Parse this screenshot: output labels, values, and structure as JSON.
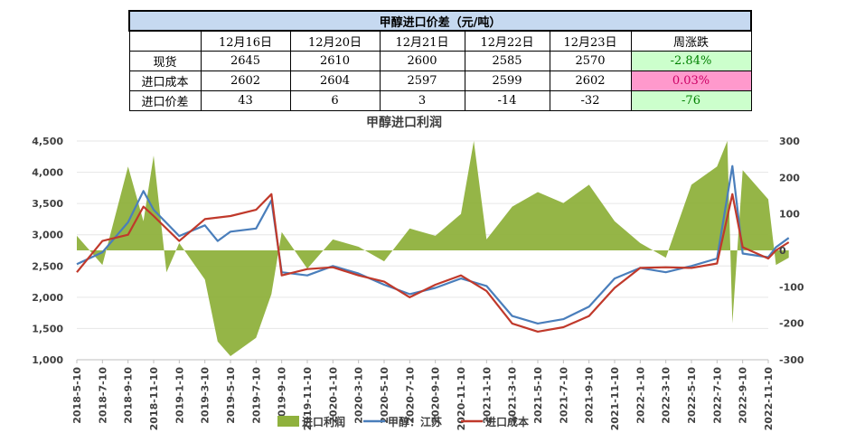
{
  "table": {
    "title": "甲醇进口价差（元/吨）",
    "headers": [
      "",
      "12月16日",
      "12月20日",
      "12月21日",
      "12月22日",
      "12月23日",
      "周涨跌"
    ],
    "rows": [
      {
        "label": "现货",
        "values": [
          "2645",
          "2610",
          "2600",
          "2585",
          "2570"
        ],
        "change": "-2.84%",
        "change_style": "green"
      },
      {
        "label": "进口成本",
        "values": [
          "2602",
          "2604",
          "2597",
          "2599",
          "2602"
        ],
        "change": "0.03%",
        "change_style": "pink"
      },
      {
        "label": "进口价差",
        "values": [
          "43",
          "6",
          "3",
          "-14",
          "-32"
        ],
        "change": "-76",
        "change_style": "green"
      }
    ]
  },
  "chart_data": {
    "type": "line",
    "title": "甲醇进口利润",
    "x_ticks": [
      "2018-5-10",
      "2018-7-10",
      "2018-9-10",
      "2018-11-10",
      "2019-1-10",
      "2019-3-10",
      "2019-5-10",
      "2019-7-10",
      "2019-9-10",
      "2019-11-10",
      "2020-1-10",
      "2020-3-10",
      "2020-5-10",
      "2020-7-10",
      "2020-9-10",
      "2020-11-10",
      "2021-1-10",
      "2021-3-10",
      "2021-5-10",
      "2021-7-10",
      "2021-9-10",
      "2021-11-10",
      "2022-1-10",
      "2022-3-10",
      "2022-5-10",
      "2022-7-10",
      "2022-9-10",
      "2022-11-10"
    ],
    "y_left": {
      "ticks": [
        "1,000",
        "1,500",
        "2,000",
        "2,500",
        "3,000",
        "3,500",
        "4,000",
        "4,500"
      ],
      "min": 1000,
      "max": 4500
    },
    "y_right": {
      "ticks": [
        "-300",
        "-200",
        "-100",
        "0",
        "100",
        "200",
        "300"
      ],
      "min": -300,
      "max": 300
    },
    "legend": [
      "进口利润",
      "甲醇：江苏",
      "进口成本"
    ],
    "colors": {
      "profit": "#8fb13d",
      "jiangsu": "#4a7ebb",
      "cost": "#c0392b"
    },
    "series": [
      {
        "name": "甲醇：江苏",
        "axis": "left",
        "points": [
          [
            0,
            2530
          ],
          [
            1,
            2720
          ],
          [
            2,
            3200
          ],
          [
            2.6,
            3700
          ],
          [
            3,
            3400
          ],
          [
            4,
            2980
          ],
          [
            5,
            3150
          ],
          [
            5.5,
            2900
          ],
          [
            6,
            3050
          ],
          [
            7,
            3100
          ],
          [
            7.6,
            3550
          ],
          [
            8,
            2400
          ],
          [
            9,
            2350
          ],
          [
            10,
            2500
          ],
          [
            11,
            2380
          ],
          [
            12,
            2200
          ],
          [
            13,
            2050
          ],
          [
            14,
            2150
          ],
          [
            15,
            2300
          ],
          [
            16,
            2180
          ],
          [
            17,
            1700
          ],
          [
            18,
            1580
          ],
          [
            19,
            1650
          ],
          [
            20,
            1850
          ],
          [
            21,
            2300
          ],
          [
            22,
            2470
          ],
          [
            23,
            2400
          ],
          [
            24,
            2500
          ],
          [
            25,
            2620
          ],
          [
            25.6,
            4100
          ],
          [
            26,
            2700
          ],
          [
            27,
            2640
          ],
          [
            27.3,
            2800
          ],
          [
            27.8,
            2950
          ]
        ]
      },
      {
        "name": "进口成本",
        "axis": "left",
        "points": [
          [
            0,
            2400
          ],
          [
            1,
            2900
          ],
          [
            2,
            3000
          ],
          [
            2.6,
            3450
          ],
          [
            3,
            3300
          ],
          [
            4,
            2900
          ],
          [
            5,
            3250
          ],
          [
            6,
            3300
          ],
          [
            7,
            3400
          ],
          [
            7.6,
            3650
          ],
          [
            8,
            2350
          ],
          [
            9,
            2450
          ],
          [
            10,
            2480
          ],
          [
            11,
            2350
          ],
          [
            12,
            2250
          ],
          [
            13,
            2000
          ],
          [
            14,
            2200
          ],
          [
            15,
            2350
          ],
          [
            16,
            2100
          ],
          [
            17,
            1580
          ],
          [
            18,
            1450
          ],
          [
            19,
            1520
          ],
          [
            20,
            1700
          ],
          [
            21,
            2150
          ],
          [
            22,
            2470
          ],
          [
            23,
            2480
          ],
          [
            24,
            2470
          ],
          [
            25,
            2540
          ],
          [
            25.6,
            3650
          ],
          [
            26,
            2800
          ],
          [
            27,
            2620
          ],
          [
            27.3,
            2750
          ],
          [
            27.8,
            2880
          ]
        ]
      },
      {
        "name": "进口利润",
        "axis": "right",
        "points": [
          [
            0,
            40
          ],
          [
            1,
            -40
          ],
          [
            2,
            230
          ],
          [
            2.6,
            80
          ],
          [
            3,
            260
          ],
          [
            3.5,
            -60
          ],
          [
            4,
            20
          ],
          [
            5,
            -80
          ],
          [
            5.5,
            -250
          ],
          [
            6,
            -290
          ],
          [
            7,
            -240
          ],
          [
            7.6,
            -120
          ],
          [
            8,
            50
          ],
          [
            9,
            -50
          ],
          [
            10,
            30
          ],
          [
            11,
            10
          ],
          [
            12,
            -30
          ],
          [
            13,
            60
          ],
          [
            14,
            40
          ],
          [
            15,
            100
          ],
          [
            15.5,
            300
          ],
          [
            16,
            30
          ],
          [
            17,
            120
          ],
          [
            18,
            160
          ],
          [
            19,
            130
          ],
          [
            20,
            180
          ],
          [
            21,
            80
          ],
          [
            22,
            20
          ],
          [
            23,
            -20
          ],
          [
            24,
            180
          ],
          [
            25,
            230
          ],
          [
            25.4,
            300
          ],
          [
            25.6,
            -200
          ],
          [
            26,
            220
          ],
          [
            27,
            140
          ],
          [
            27.3,
            -40
          ],
          [
            27.8,
            -20
          ]
        ]
      }
    ]
  }
}
